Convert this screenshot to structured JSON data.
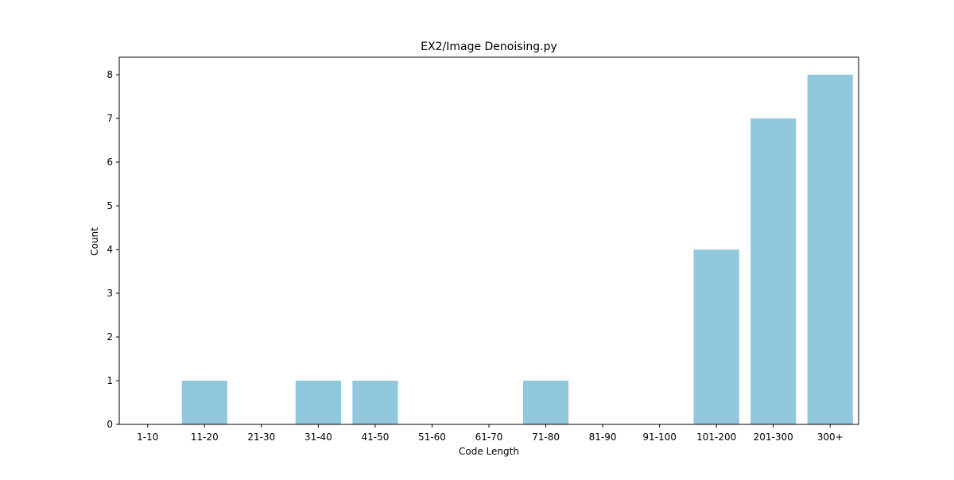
{
  "chart_data": {
    "type": "bar",
    "title": "EX2/Image Denoising.py",
    "xlabel": "Code Length",
    "ylabel": "Count",
    "categories": [
      "1-10",
      "11-20",
      "21-30",
      "31-40",
      "41-50",
      "51-60",
      "61-70",
      "71-80",
      "81-90",
      "91-100",
      "101-200",
      "201-300",
      "300+"
    ],
    "values": [
      0,
      1,
      0,
      1,
      1,
      0,
      0,
      1,
      0,
      0,
      4,
      7,
      8
    ],
    "ylim": [
      0,
      8.4
    ],
    "yticks": [
      0,
      1,
      2,
      3,
      4,
      5,
      6,
      7,
      8
    ],
    "grid": false,
    "bar_color": "#92c8dd"
  }
}
